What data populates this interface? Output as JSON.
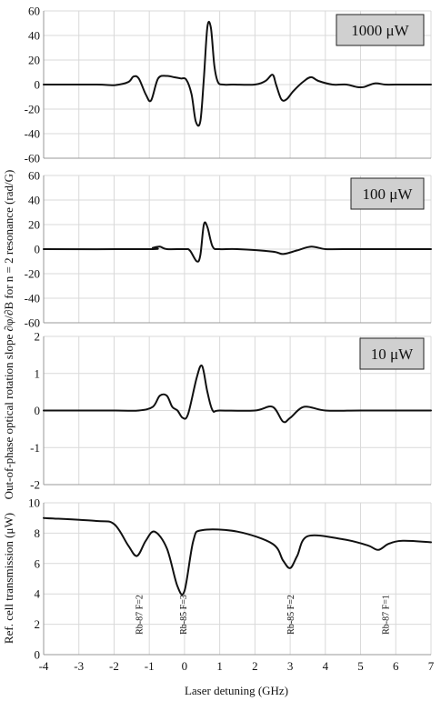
{
  "chart_data": [
    {
      "type": "line",
      "panel": "1000 µW",
      "badge": "1000 μW",
      "ylim": [
        -60,
        60
      ],
      "yticks": [
        "60",
        "40",
        "20",
        "0",
        "-20",
        "-40",
        "-60"
      ],
      "xlim": [
        -4,
        7
      ],
      "grid": true,
      "series": [
        {
          "x": [
            -4,
            -2.5,
            -2,
            -1.6,
            -1.45,
            -1.3,
            -1.1,
            -0.95,
            -0.75,
            -0.5,
            -0.3,
            -0.1,
            0.05,
            0.2,
            0.32,
            0.45,
            0.55,
            0.65,
            0.75,
            0.85,
            0.95,
            1.1,
            1.4,
            2.0,
            2.3,
            2.5,
            2.6,
            2.75,
            2.9,
            3.1,
            3.4,
            3.6,
            3.8,
            4.2,
            4.6,
            4.9,
            5.1,
            5.4,
            5.7,
            6.0,
            7
          ],
          "y": [
            0,
            0,
            -0.5,
            2,
            6.5,
            5,
            -8,
            -13,
            5,
            7,
            6,
            5,
            4,
            -8,
            -30,
            -30,
            5,
            47,
            46,
            15,
            2,
            0,
            0,
            0,
            3,
            8,
            0,
            -12,
            -12,
            -5,
            3,
            6,
            3,
            0,
            0,
            -2,
            -2,
            1,
            0,
            0,
            0
          ]
        }
      ]
    },
    {
      "type": "line",
      "panel": "100 µW",
      "badge": "100 μW",
      "ylim": [
        -60,
        60
      ],
      "yticks": [
        "60",
        "40",
        "20",
        "0",
        "-20",
        "-40",
        "-60"
      ],
      "xlim": [
        -4,
        7
      ],
      "grid": true,
      "series": [
        {
          "x": [
            -4,
            -1,
            -0.9,
            -0.7,
            -0.5,
            0,
            0.15,
            0.35,
            0.45,
            0.55,
            0.65,
            0.8,
            1.0,
            1.5,
            2.5,
            2.8,
            3.2,
            3.6,
            4.0,
            4.5,
            7
          ],
          "y": [
            0,
            0,
            1,
            2,
            0,
            0,
            -1,
            -10,
            -5,
            20,
            18,
            2,
            0,
            0,
            -2,
            -4,
            -1,
            2,
            0,
            0,
            0
          ]
        }
      ]
    },
    {
      "type": "line",
      "panel": "10 µW",
      "badge": "10 μW",
      "ylim": [
        -2,
        2
      ],
      "yticks": [
        "2",
        "1",
        "0",
        "-1",
        "-2"
      ],
      "xlim": [
        -4,
        7
      ],
      "grid": true,
      "series": [
        {
          "x": [
            -4,
            -2,
            -1.3,
            -0.9,
            -0.7,
            -0.5,
            -0.35,
            -0.2,
            -0.05,
            0.1,
            0.35,
            0.5,
            0.65,
            0.8,
            1.0,
            2.0,
            2.5,
            2.8,
            3.0,
            3.4,
            4.0,
            5.0,
            7
          ],
          "y": [
            0,
            0,
            0,
            0.1,
            0.4,
            0.4,
            0.1,
            0,
            -0.2,
            -0.1,
            0.9,
            1.2,
            0.5,
            0,
            0,
            0,
            0.1,
            -0.3,
            -0.2,
            0.1,
            0,
            0,
            0
          ]
        }
      ]
    },
    {
      "type": "line",
      "panel": "reference",
      "ylabel": "Ref. cell transmission (μW)",
      "xlabel": "Laser detuning (GHz)",
      "ylim": [
        0,
        10
      ],
      "yticks": [
        "10",
        "8",
        "6",
        "4",
        "2",
        "0"
      ],
      "xticks": [
        "-4",
        "-3",
        "-2",
        "-1",
        "0",
        "1",
        "2",
        "3",
        "4",
        "5",
        "6",
        "7"
      ],
      "xlim": [
        -4,
        7
      ],
      "grid": true,
      "series": [
        {
          "x": [
            -4,
            -2.5,
            -2,
            -1.6,
            -1.35,
            -1.1,
            -0.85,
            -0.5,
            -0.2,
            0,
            0.25,
            0.5,
            1.5,
            2.5,
            2.8,
            3.0,
            3.2,
            3.5,
            4.5,
            5.2,
            5.5,
            5.8,
            6.2,
            7
          ],
          "y": [
            9,
            8.8,
            8.6,
            7.2,
            6.5,
            7.5,
            8.1,
            7,
            4.5,
            4.2,
            7.5,
            8.2,
            8.1,
            7.3,
            6.2,
            5.7,
            6.5,
            7.8,
            7.6,
            7.2,
            6.9,
            7.3,
            7.5,
            7.4
          ]
        }
      ],
      "annotations": [
        {
          "label": "Rb-87 F=2",
          "x": -1.3
        },
        {
          "label": "Rb-85 F=3",
          "x": -0.05
        },
        {
          "label": "Rb-85 F=2",
          "x": 3.0
        },
        {
          "label": "Rb-87 F=1",
          "x": 5.7
        }
      ]
    }
  ],
  "shared_ylabel": "Out-of-phase optical rotation slope ∂φ/∂B for n = 2 resonance (rad/G)"
}
